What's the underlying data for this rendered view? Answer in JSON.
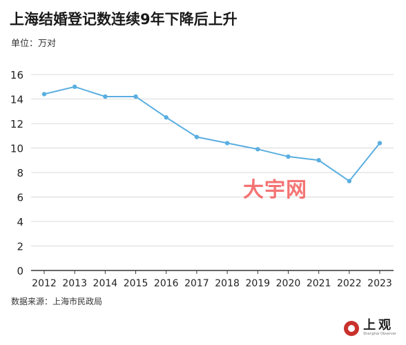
{
  "header": {
    "title": "上海结婚登记数连续9年下降后上升",
    "unit": "单位：万对"
  },
  "footer": {
    "source": "数据来源：上海市民政局"
  },
  "watermark": "大宇网",
  "logo": {
    "cn": "上观",
    "en": "Shanghai Observer"
  },
  "colors": {
    "line": "#5aaee0",
    "grid": "#d9d9d9",
    "axis": "#333333"
  },
  "chart_data": {
    "type": "line",
    "title": "上海结婚登记数连续9年下降后上升",
    "ylabel": "单位：万对",
    "xlabel": "",
    "categories": [
      "2012",
      "2013",
      "2014",
      "2015",
      "2016",
      "2017",
      "2018",
      "2019",
      "2020",
      "2021",
      "2022",
      "2023"
    ],
    "series": [
      {
        "values": [
          14.4,
          15.0,
          14.2,
          14.2,
          12.5,
          10.9,
          10.4,
          9.9,
          9.3,
          9.0,
          7.3,
          10.4
        ]
      }
    ],
    "ylim": [
      0,
      16
    ],
    "yticks": [
      0,
      2,
      4,
      6,
      8,
      10,
      12,
      14,
      16
    ],
    "grid": true
  }
}
